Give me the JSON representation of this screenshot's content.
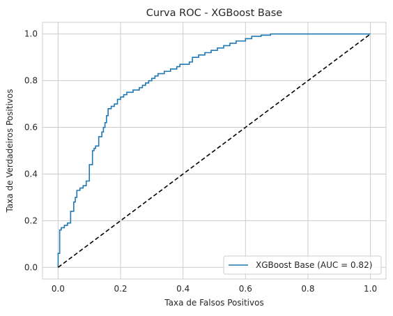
{
  "chart_data": {
    "type": "line",
    "title": "Curva ROC - XGBoost Base",
    "xlabel": "Taxa de Falsos Positivos",
    "ylabel": "Taxa de Verdadeiros Positivos",
    "xlim": [
      -0.05,
      1.05
    ],
    "ylim": [
      -0.05,
      1.05
    ],
    "xticks": [
      0.0,
      0.2,
      0.4,
      0.6,
      0.8,
      1.0
    ],
    "xtick_labels": [
      "0.0",
      "0.2",
      "0.4",
      "0.6",
      "0.8",
      "1.0"
    ],
    "yticks": [
      0.0,
      0.2,
      0.4,
      0.6,
      0.8,
      1.0
    ],
    "ytick_labels": [
      "0.0",
      "0.2",
      "0.4",
      "0.6",
      "0.8",
      "1.0"
    ],
    "grid": true,
    "legend_position": "bottom-right",
    "series": [
      {
        "name": "XGBoost Base (AUC = 0.82)",
        "color": "#1f77b4",
        "style": "steps",
        "x": [
          0.0,
          0.0,
          0.005,
          0.005,
          0.01,
          0.01,
          0.02,
          0.02,
          0.03,
          0.03,
          0.04,
          0.04,
          0.05,
          0.05,
          0.055,
          0.055,
          0.06,
          0.06,
          0.07,
          0.07,
          0.08,
          0.08,
          0.09,
          0.09,
          0.1,
          0.1,
          0.11,
          0.11,
          0.115,
          0.115,
          0.12,
          0.12,
          0.13,
          0.13,
          0.14,
          0.14,
          0.145,
          0.145,
          0.15,
          0.15,
          0.155,
          0.155,
          0.16,
          0.16,
          0.17,
          0.17,
          0.18,
          0.18,
          0.19,
          0.19,
          0.2,
          0.2,
          0.21,
          0.21,
          0.22,
          0.22,
          0.24,
          0.24,
          0.26,
          0.26,
          0.27,
          0.27,
          0.28,
          0.28,
          0.29,
          0.29,
          0.3,
          0.3,
          0.31,
          0.31,
          0.32,
          0.32,
          0.34,
          0.34,
          0.36,
          0.36,
          0.38,
          0.38,
          0.39,
          0.39,
          0.42,
          0.42,
          0.43,
          0.43,
          0.45,
          0.45,
          0.47,
          0.47,
          0.49,
          0.49,
          0.51,
          0.51,
          0.53,
          0.53,
          0.55,
          0.55,
          0.57,
          0.57,
          0.6,
          0.6,
          0.62,
          0.62,
          0.65,
          0.65,
          0.68,
          0.68,
          0.7,
          0.7,
          0.75,
          0.75,
          1.0
        ],
        "y": [
          0.0,
          0.06,
          0.06,
          0.16,
          0.16,
          0.17,
          0.17,
          0.18,
          0.18,
          0.19,
          0.19,
          0.24,
          0.24,
          0.28,
          0.28,
          0.3,
          0.3,
          0.33,
          0.33,
          0.34,
          0.34,
          0.35,
          0.35,
          0.37,
          0.37,
          0.44,
          0.44,
          0.5,
          0.5,
          0.51,
          0.51,
          0.52,
          0.52,
          0.56,
          0.56,
          0.58,
          0.58,
          0.6,
          0.6,
          0.62,
          0.62,
          0.65,
          0.65,
          0.68,
          0.68,
          0.69,
          0.69,
          0.7,
          0.7,
          0.72,
          0.72,
          0.73,
          0.73,
          0.74,
          0.74,
          0.75,
          0.75,
          0.76,
          0.76,
          0.77,
          0.77,
          0.78,
          0.78,
          0.79,
          0.79,
          0.8,
          0.8,
          0.81,
          0.81,
          0.82,
          0.82,
          0.83,
          0.83,
          0.84,
          0.84,
          0.85,
          0.85,
          0.86,
          0.86,
          0.87,
          0.87,
          0.88,
          0.88,
          0.9,
          0.9,
          0.91,
          0.91,
          0.92,
          0.92,
          0.93,
          0.93,
          0.94,
          0.94,
          0.95,
          0.95,
          0.96,
          0.96,
          0.97,
          0.97,
          0.98,
          0.98,
          0.99,
          0.99,
          0.995,
          0.995,
          1.0,
          1.0,
          1.0,
          1.0,
          1.0,
          1.0
        ]
      },
      {
        "name": "",
        "color": "#000000",
        "style": "dashed",
        "x": [
          0.0,
          1.0
        ],
        "y": [
          0.0,
          1.0
        ]
      }
    ]
  }
}
